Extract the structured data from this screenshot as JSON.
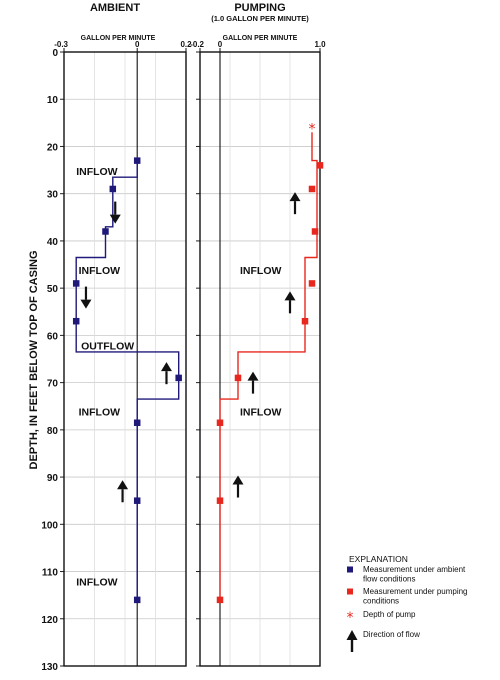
{
  "chart_data": {
    "type": "line",
    "y_axis": {
      "label": "DEPTH, IN FEET BELOW TOP OF CASING",
      "range": [
        0,
        130
      ],
      "ticks": [
        0,
        10,
        20,
        30,
        40,
        50,
        60,
        70,
        80,
        90,
        100,
        110,
        120,
        130
      ],
      "direction": "down",
      "grid": true
    },
    "panels": [
      {
        "id": "ambient",
        "title": "AMBIENT",
        "subtitle": "",
        "x_unit_label": "GALLON PER MINUTE",
        "x_range": [
          -0.3,
          0.2
        ],
        "x_tick_labels": [
          "-0.3",
          "0",
          "0.2"
        ],
        "x_tick_values": [
          -0.3,
          0,
          0.2
        ],
        "color": "#1f1a7a",
        "profile": [
          [
            0.0,
            23
          ],
          [
            0.0,
            26.5
          ],
          [
            -0.1,
            26.5
          ],
          [
            -0.1,
            37
          ],
          [
            -0.13,
            37
          ],
          [
            -0.13,
            43.5
          ],
          [
            -0.25,
            43.5
          ],
          [
            -0.25,
            63.5
          ],
          [
            0.17,
            63.5
          ],
          [
            0.17,
            73.5
          ],
          [
            0.0,
            73.5
          ],
          [
            0.0,
            116
          ]
        ],
        "measurements": [
          {
            "x": 0.0,
            "y": 23
          },
          {
            "x": -0.1,
            "y": 29
          },
          {
            "x": -0.13,
            "y": 38
          },
          {
            "x": -0.25,
            "y": 49
          },
          {
            "x": -0.25,
            "y": 57
          },
          {
            "x": 0.17,
            "y": 69
          },
          {
            "x": 0.0,
            "y": 78.5
          },
          {
            "x": 0.0,
            "y": 95
          },
          {
            "x": 0.0,
            "y": 116
          }
        ],
        "flow_arrows": [
          {
            "x": -0.09,
            "y": 34,
            "direction": "down"
          },
          {
            "x": -0.21,
            "y": 52,
            "direction": "down"
          },
          {
            "x": 0.12,
            "y": 68,
            "direction": "up"
          },
          {
            "x": -0.06,
            "y": 93,
            "direction": "up"
          }
        ],
        "annotations": [
          {
            "text": "INFLOW",
            "x": -0.25,
            "y": 26
          },
          {
            "text": "INFLOW",
            "x": -0.24,
            "y": 47
          },
          {
            "text": "OUTFLOW",
            "x": -0.23,
            "y": 63
          },
          {
            "text": "INFLOW",
            "x": -0.24,
            "y": 77
          },
          {
            "text": "INFLOW",
            "x": -0.25,
            "y": 113
          }
        ]
      },
      {
        "id": "pumping",
        "title": "PUMPING",
        "subtitle": "(1.0 GALLON PER MINUTE)",
        "x_unit_label": "GALLON PER MINUTE",
        "x_range": [
          -0.2,
          1.0
        ],
        "x_tick_labels": [
          "-0.2",
          "0",
          "1.0"
        ],
        "x_tick_values": [
          -0.2,
          0,
          1.0
        ],
        "color": "#e8281e",
        "profile": [
          [
            0.92,
            17
          ],
          [
            0.92,
            23
          ],
          [
            0.97,
            23
          ],
          [
            0.97,
            43.5
          ],
          [
            0.85,
            43.5
          ],
          [
            0.85,
            63.5
          ],
          [
            0.18,
            63.5
          ],
          [
            0.18,
            73.5
          ],
          [
            0.0,
            73.5
          ],
          [
            0.0,
            116
          ]
        ],
        "measurements": [
          {
            "x": 1.0,
            "y": 24
          },
          {
            "x": 0.92,
            "y": 29
          },
          {
            "x": 0.95,
            "y": 38
          },
          {
            "x": 0.92,
            "y": 49
          },
          {
            "x": 0.85,
            "y": 57
          },
          {
            "x": 0.18,
            "y": 69
          },
          {
            "x": 0.0,
            "y": 78.5
          },
          {
            "x": 0.0,
            "y": 95
          },
          {
            "x": 0.0,
            "y": 116
          }
        ],
        "pump_depth": {
          "x": 0.92,
          "y": 16
        },
        "flow_arrows": [
          {
            "x": 0.75,
            "y": 32,
            "direction": "up"
          },
          {
            "x": 0.7,
            "y": 53,
            "direction": "up"
          },
          {
            "x": 0.33,
            "y": 70,
            "direction": "up"
          },
          {
            "x": 0.18,
            "y": 92,
            "direction": "up"
          }
        ],
        "annotations": [
          {
            "text": "INFLOW",
            "x": 0.2,
            "y": 47
          },
          {
            "text": "INFLOW",
            "x": 0.2,
            "y": 77
          }
        ]
      }
    ],
    "legend": {
      "title": "EXPLANATION",
      "placement": "bottom-right",
      "items": [
        {
          "symbol": "square",
          "color": "#1f1a7a",
          "lines": [
            "Measurement under ambient",
            "flow conditions"
          ]
        },
        {
          "symbol": "square",
          "color": "#e8281e",
          "lines": [
            "Measurement under pumping",
            "conditions"
          ]
        },
        {
          "symbol": "asterisk",
          "color": "#e8281e",
          "lines": [
            "Depth of pump"
          ]
        },
        {
          "symbol": "arrow",
          "color": "#111111",
          "lines": [
            "Direction of flow"
          ]
        }
      ]
    }
  }
}
